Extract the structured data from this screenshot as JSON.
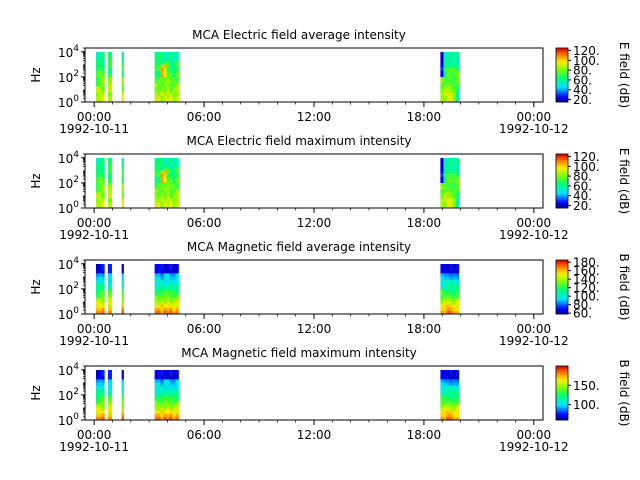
{
  "chart_data": [
    {
      "type": "heatmap",
      "title": "MCA  Electric field average intensity",
      "ylabel": "Hz",
      "y_scale": "log",
      "ylim": [
        1,
        20000
      ],
      "y_ticks": [
        {
          "value": 1,
          "base": "10",
          "exp": "0"
        },
        {
          "value": 100,
          "base": "10",
          "exp": "2"
        },
        {
          "value": 10000,
          "base": "10",
          "exp": "4"
        }
      ],
      "x_tick_labels": [
        "00:00",
        "06:00",
        "12:00",
        "18:00",
        "00:00"
      ],
      "x_tick_hours": [
        0,
        6,
        12,
        18,
        24
      ],
      "x_start_date": "1992-10-11",
      "x_end_date": "1992-10-12",
      "xlim_hours": [
        -0.5,
        24.5
      ],
      "data_blocks_hours": [
        [
          0.1,
          0.55
        ],
        [
          0.75,
          0.95
        ],
        [
          1.5,
          1.6
        ],
        [
          3.3,
          4.6
        ],
        [
          18.9,
          19.9
        ]
      ],
      "colorbar": {
        "label": "E field (dB)",
        "range": [
          15,
          125
        ],
        "ticks": [
          20,
          40,
          60,
          80,
          100,
          120
        ],
        "tick_labels": [
          "20.",
          "40.",
          "60.",
          "80.",
          "100.",
          "120."
        ]
      }
    },
    {
      "type": "heatmap",
      "title": "MCA  Electric field maximum intensity",
      "ylabel": "Hz",
      "y_scale": "log",
      "ylim": [
        1,
        20000
      ],
      "y_ticks": [
        {
          "value": 1,
          "base": "10",
          "exp": "0"
        },
        {
          "value": 100,
          "base": "10",
          "exp": "2"
        },
        {
          "value": 10000,
          "base": "10",
          "exp": "4"
        }
      ],
      "x_tick_labels": [
        "00:00",
        "06:00",
        "12:00",
        "18:00",
        "00:00"
      ],
      "x_tick_hours": [
        0,
        6,
        12,
        18,
        24
      ],
      "x_start_date": "1992-10-11",
      "x_end_date": "1992-10-12",
      "xlim_hours": [
        -0.5,
        24.5
      ],
      "data_blocks_hours": [
        [
          0.1,
          0.55
        ],
        [
          0.75,
          0.95
        ],
        [
          1.5,
          1.6
        ],
        [
          3.3,
          4.6
        ],
        [
          18.9,
          19.9
        ]
      ],
      "colorbar": {
        "label": "E field (dB)",
        "range": [
          15,
          125
        ],
        "ticks": [
          20,
          40,
          60,
          80,
          100,
          120
        ],
        "tick_labels": [
          "20.",
          "40.",
          "60.",
          "80.",
          "100.",
          "120."
        ]
      }
    },
    {
      "type": "heatmap",
      "title": "MCA  Magnetic field average intensity",
      "ylabel": "Hz",
      "y_scale": "log",
      "ylim": [
        1,
        20000
      ],
      "y_ticks": [
        {
          "value": 1,
          "base": "10",
          "exp": "0"
        },
        {
          "value": 100,
          "base": "10",
          "exp": "2"
        },
        {
          "value": 10000,
          "base": "10",
          "exp": "4"
        }
      ],
      "x_tick_labels": [
        "00:00",
        "06:00",
        "12:00",
        "18:00",
        "00:00"
      ],
      "x_tick_hours": [
        0,
        6,
        12,
        18,
        24
      ],
      "x_start_date": "1992-10-11",
      "x_end_date": "1992-10-12",
      "xlim_hours": [
        -0.5,
        24.5
      ],
      "data_blocks_hours": [
        [
          0.1,
          0.55
        ],
        [
          0.75,
          0.95
        ],
        [
          1.5,
          1.6
        ],
        [
          3.3,
          4.6
        ],
        [
          18.9,
          19.9
        ]
      ],
      "colorbar": {
        "label": "B field (dB)",
        "range": [
          58,
          185
        ],
        "ticks": [
          60,
          80,
          100,
          120,
          140,
          160,
          180
        ],
        "tick_labels": [
          "60.",
          "80.",
          "100.",
          "120.",
          "140.",
          "160.",
          "180."
        ]
      }
    },
    {
      "type": "heatmap",
      "title": "MCA  Magnetic field maximum intensity",
      "ylabel": "Hz",
      "y_scale": "log",
      "ylim": [
        1,
        20000
      ],
      "y_ticks": [
        {
          "value": 1,
          "base": "10",
          "exp": "0"
        },
        {
          "value": 100,
          "base": "10",
          "exp": "2"
        },
        {
          "value": 10000,
          "base": "10",
          "exp": "4"
        }
      ],
      "x_tick_labels": [
        "00:00",
        "06:00",
        "12:00",
        "18:00",
        "00:00"
      ],
      "x_tick_hours": [
        0,
        6,
        12,
        18,
        24
      ],
      "x_start_date": "1992-10-11",
      "x_end_date": "1992-10-12",
      "xlim_hours": [
        -0.5,
        24.5
      ],
      "data_blocks_hours": [
        [
          0.1,
          0.55
        ],
        [
          0.75,
          0.95
        ],
        [
          1.5,
          1.6
        ],
        [
          3.3,
          4.6
        ],
        [
          18.9,
          19.9
        ]
      ],
      "colorbar": {
        "label": "B field (dB)",
        "range": [
          60,
          200
        ],
        "ticks": [
          100,
          150
        ],
        "tick_labels": [
          "100.",
          "150."
        ]
      }
    }
  ]
}
